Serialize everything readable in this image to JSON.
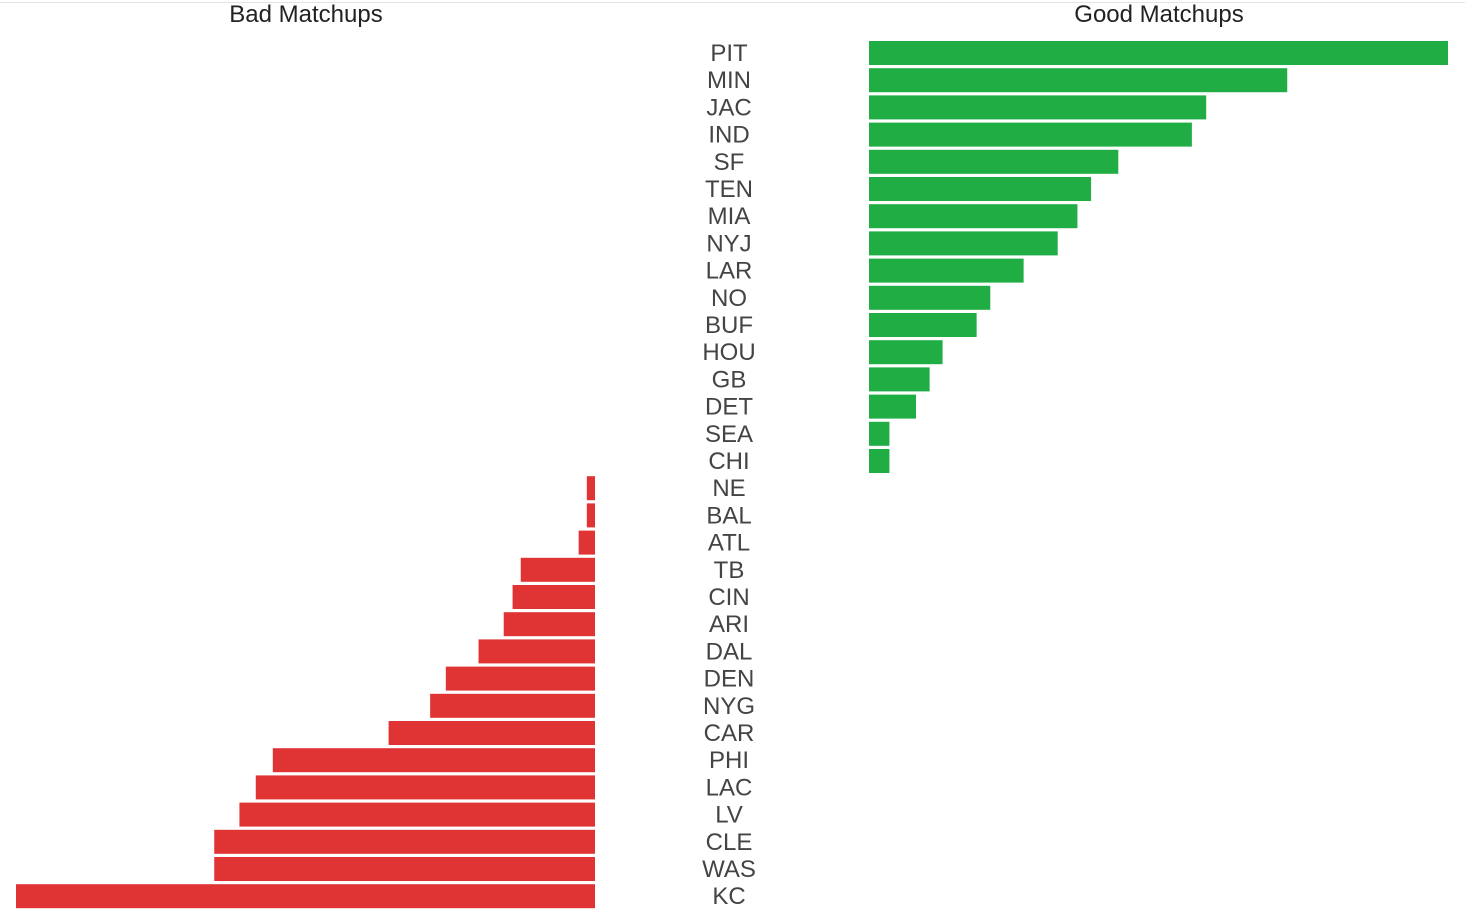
{
  "chart_data": {
    "type": "bar",
    "orientation": "horizontal",
    "layout": "diverging",
    "panels": [
      {
        "title": "Bad Matchups",
        "color": "#e03434"
      },
      {
        "title": "Good Matchups",
        "color": "#1fad44"
      }
    ],
    "label_color": "#444444",
    "categories": [
      "PIT",
      "MIN",
      "JAC",
      "IND",
      "SF",
      "TEN",
      "MIA",
      "NYJ",
      "LAR",
      "NO",
      "BUF",
      "HOU",
      "GB",
      "DET",
      "SEA",
      "CHI",
      "NE",
      "BAL",
      "ATL",
      "TB",
      "CIN",
      "ARI",
      "DAL",
      "DEN",
      "NYG",
      "CAR",
      "PHI",
      "LAC",
      "LV",
      "CLE",
      "WAS",
      "KC"
    ],
    "values": [
      8.5,
      6.14,
      4.95,
      4.74,
      3.66,
      3.26,
      3.06,
      2.77,
      2.27,
      1.78,
      1.58,
      1.08,
      0.89,
      0.69,
      0.3,
      0.3,
      -0.12,
      -0.12,
      -0.24,
      -1.09,
      -1.21,
      -1.34,
      -1.71,
      -2.19,
      -2.42,
      -3.03,
      -4.73,
      -4.98,
      -5.22,
      -5.59,
      -5.59,
      -8.5
    ]
  }
}
